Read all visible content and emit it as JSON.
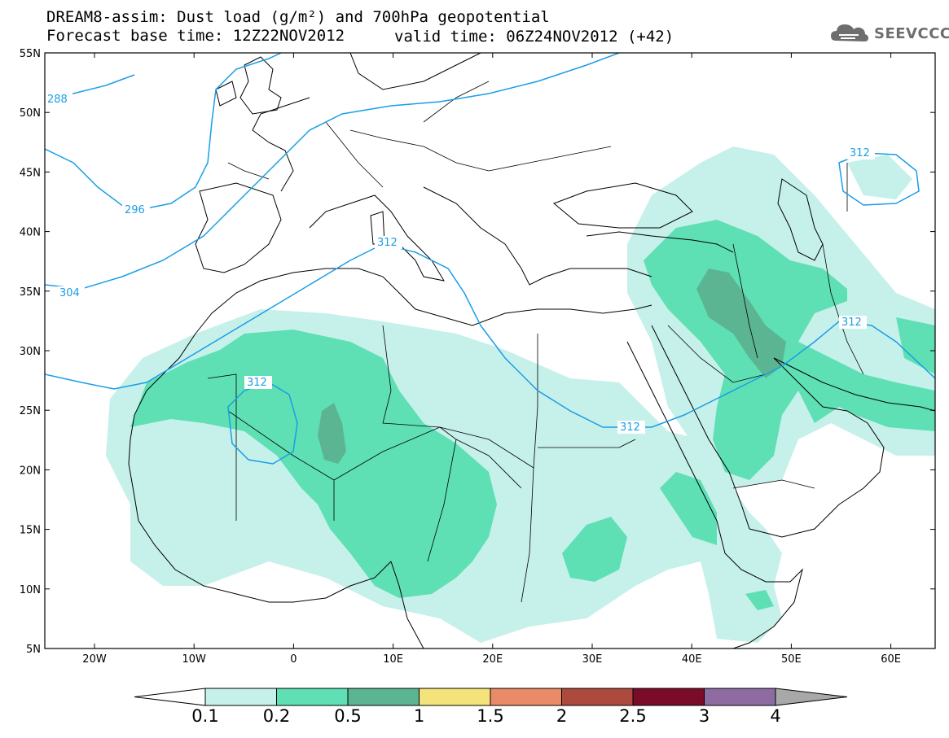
{
  "header": {
    "title_line1": "DREAM8-assim: Dust load (g/m²) and 700hPa geopotential",
    "title_line2": "Forecast base time: 12Z22NOV2012",
    "valid_time": "valid time: 06Z24NOV2012 (+42)",
    "logo_text": "SEEVCCC"
  },
  "axes": {
    "lat_labels": [
      "55N",
      "50N",
      "45N",
      "40N",
      "35N",
      "30N",
      "25N",
      "20N",
      "15N",
      "10N",
      "5N"
    ],
    "lon_labels": [
      "20W",
      "10W",
      "0",
      "10E",
      "20E",
      "30E",
      "40E",
      "50E",
      "60E"
    ]
  },
  "contours": [
    {
      "label": "288",
      "color": "#1a9ee6"
    },
    {
      "label": "296",
      "color": "#1a9ee6"
    },
    {
      "label": "304",
      "color": "#1a9ee6"
    },
    {
      "label": "312",
      "color": "#1a9ee6"
    }
  ],
  "colorbar": {
    "labels": [
      "0.1",
      "0.2",
      "0.5",
      "1",
      "1.5",
      "2",
      "2.5",
      "3",
      "4"
    ],
    "colors": [
      "#c6f0ea",
      "#5ee0b4",
      "#5cb592",
      "#f3e37a",
      "#e98b68",
      "#ac4a3e",
      "#7a0c2a",
      "#8e6ba0",
      "#a8a8a8"
    ]
  },
  "dust_levels": {
    "light": "#c6f0ea",
    "medium": "#5ee0b4",
    "dark": "#5cb592"
  }
}
